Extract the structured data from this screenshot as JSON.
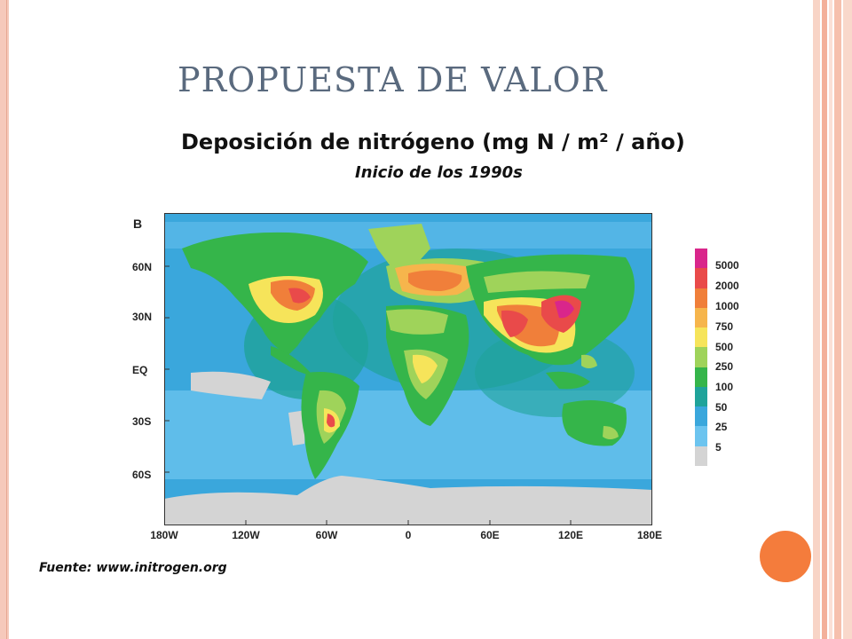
{
  "slide": {
    "title": "PROPUESTA DE VALOR",
    "source_text": "Fuente: www.initrogen.org"
  },
  "map": {
    "heading": "Deposición de nitrógeno (mg N / m² / año)",
    "subheading": "Inicio de los 1990s",
    "panel_label": "B",
    "lat_labels": [
      "60N",
      "30N",
      "EQ",
      "30S",
      "60S"
    ],
    "lon_labels": [
      "180W",
      "120W",
      "60W",
      "0",
      "60E",
      "120E",
      "180E"
    ],
    "legend": {
      "labels": [
        "5000",
        "2000",
        "1000",
        "750",
        "500",
        "250",
        "100",
        "50",
        "25",
        "5"
      ],
      "colors": [
        "#d9268b",
        "#e94a4a",
        "#f07f3a",
        "#f6b54c",
        "#f6e45a",
        "#9fd35a",
        "#35b54a",
        "#1fa39a",
        "#3aa7dc",
        "#6cc4ef",
        "#d4d4d4"
      ]
    },
    "ocean_color": "#3aa7dc",
    "land_base_color": "#35b54a",
    "ice_color": "#d4d4d4"
  },
  "theme": {
    "frame_colors": [
      "#f6c9bb",
      "#fbe0d6",
      "#f3b09a",
      "#fbe0d6",
      "#f3b09a"
    ],
    "accent_orb": "#f47c3c"
  }
}
